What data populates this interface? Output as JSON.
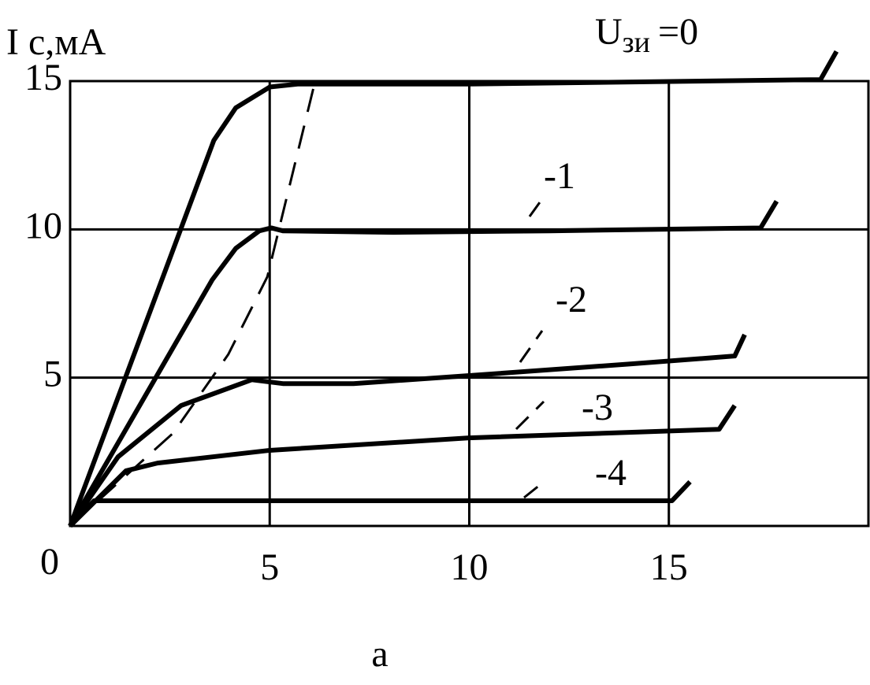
{
  "chart_data": {
    "type": "line",
    "y_label": {
      "symbol": "I",
      "unit": "с,мА"
    },
    "legend_label": {
      "symbol": "U",
      "subscript": "зи",
      "equals": "="
    },
    "caption": "а",
    "xlim": [
      0,
      20
    ],
    "ylim": [
      0,
      15
    ],
    "xticks": [
      0,
      5,
      10,
      15
    ],
    "yticks": [
      5,
      10,
      15
    ],
    "grid": true,
    "series": [
      {
        "name": "0",
        "color": "#000000",
        "x": [
          0,
          3.6,
          4.15,
          5,
          5.7,
          10,
          18.8,
          19.2
        ],
        "values": [
          0,
          13.0,
          14.1,
          14.8,
          14.9,
          14.9,
          15.05,
          16.0
        ]
      },
      {
        "name": "-1",
        "color": "#000000",
        "x": [
          0,
          3.56,
          4.15,
          4.74,
          5.04,
          5.33,
          8.1,
          12.0,
          17.3,
          17.7
        ],
        "values": [
          0,
          8.3,
          9.36,
          9.95,
          10.05,
          9.95,
          9.9,
          9.95,
          10.05,
          10.95
        ]
      },
      {
        "name": "-2",
        "color": "#000000",
        "x": [
          0,
          1.2,
          2.78,
          4.55,
          5.33,
          7.1,
          10,
          14,
          16.65,
          16.9
        ],
        "values": [
          0,
          2.33,
          4.06,
          4.93,
          4.8,
          4.8,
          5.07,
          5.46,
          5.73,
          6.45
        ]
      },
      {
        "name": "-3",
        "color": "#000000",
        "x": [
          0,
          1.4,
          2.19,
          5,
          10,
          16.26,
          16.65
        ],
        "values": [
          0,
          1.86,
          2.12,
          2.55,
          2.97,
          3.26,
          4.06
        ]
      },
      {
        "name": "-4",
        "color": "#000000",
        "x": [
          0,
          0.6,
          15.08,
          15.53
        ],
        "values": [
          0,
          0.85,
          0.85,
          1.49
        ]
      },
      {
        "color": "#000000",
        "dashed": true,
        "x": [
          0,
          2.58,
          3.96,
          4.94,
          6.12
        ],
        "values": [
          0,
          3.13,
          5.78,
          8.4,
          14.9
        ]
      }
    ]
  }
}
